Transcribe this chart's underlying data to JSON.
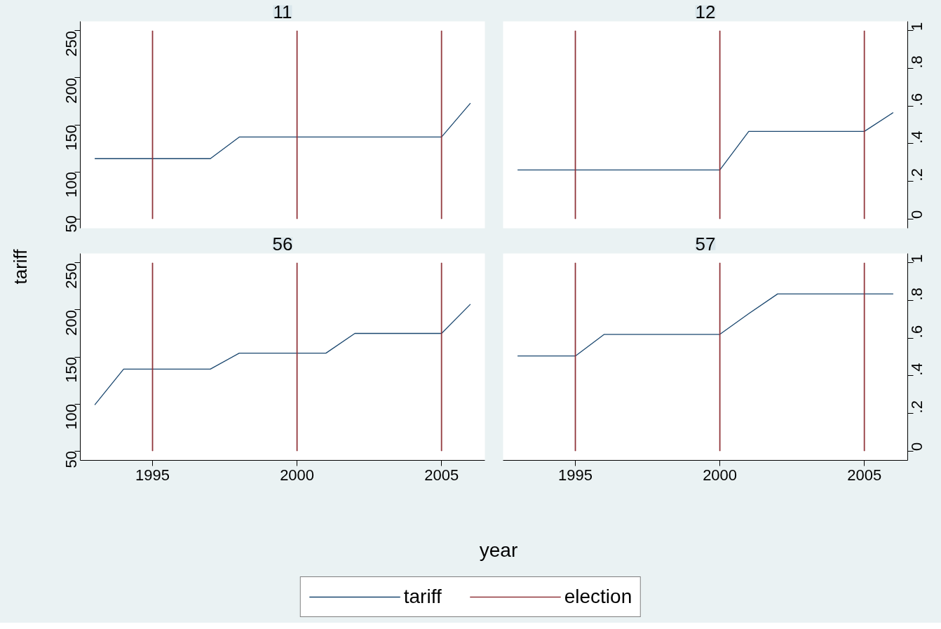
{
  "chart_data": [
    {
      "type": "line",
      "title": "11",
      "ylabel": "tariff",
      "legend": "bottom",
      "x": [
        1993,
        1994,
        1995,
        1996,
        1997,
        1998,
        1999,
        2000,
        2001,
        2002,
        2003,
        2004,
        2005,
        2006
      ],
      "xlim": [
        1992.5,
        2006.5
      ],
      "ylim": [
        40,
        260
      ],
      "yticks": [
        50,
        100,
        150,
        200,
        250
      ],
      "y2lim": [
        -0.05,
        1.05
      ],
      "tick_labels": "y",
      "series": [
        {
          "name": "tariff",
          "color": "#1a476f",
          "values": [
            114,
            114,
            114,
            114,
            114,
            137,
            137,
            137,
            137,
            137,
            137,
            137,
            137,
            173
          ]
        },
        {
          "name": "election",
          "type": "bar",
          "axis": "y2",
          "color": "#90353b",
          "x": [
            1995,
            2000,
            2005
          ],
          "values": [
            1,
            1,
            1
          ]
        }
      ]
    },
    {
      "type": "line",
      "title": "12",
      "x": [
        1993,
        1994,
        1995,
        1996,
        1997,
        1998,
        1999,
        2000,
        2001,
        2002,
        2003,
        2004,
        2005,
        2006
      ],
      "xlim": [
        1992.5,
        2006.5
      ],
      "ylim": [
        40,
        260
      ],
      "y2lim": [
        -0.05,
        1.05
      ],
      "y2ticks": [
        {
          "value": 0,
          "label": "0"
        },
        {
          "value": 0.2,
          "label": ".2"
        },
        {
          "value": 0.4,
          "label": ".4"
        },
        {
          "value": 0.6,
          "label": ".6"
        },
        {
          "value": 0.8,
          "label": ".8"
        },
        1
      ],
      "tick_labels": "y2",
      "series": [
        {
          "color": "#1a476f",
          "values": [
            102,
            102,
            102,
            102,
            102,
            102,
            102,
            102,
            143,
            143,
            143,
            143,
            143,
            163
          ]
        },
        {
          "type": "bar",
          "axis": "y2",
          "color": "#90353b",
          "x": [
            1995,
            2000,
            2005
          ],
          "values": [
            1,
            1,
            1
          ]
        }
      ]
    },
    {
      "type": "line",
      "title": "56",
      "xlabel": "year",
      "x": [
        1993,
        1994,
        1995,
        1996,
        1997,
        1998,
        1999,
        2000,
        2001,
        2002,
        2003,
        2004,
        2005,
        2006
      ],
      "xlim": [
        1992.5,
        2006.5
      ],
      "xticks": [
        1995,
        2000,
        2005
      ],
      "ylim": [
        40,
        260
      ],
      "yticks": [
        50,
        100,
        150,
        200,
        250
      ],
      "y2lim": [
        -0.05,
        1.05
      ],
      "tick_labels": "xy",
      "series": [
        {
          "color": "#1a476f",
          "values": [
            99,
            137,
            137,
            137,
            137,
            154,
            154,
            154,
            154,
            175,
            175,
            175,
            175,
            206
          ]
        },
        {
          "type": "bar",
          "axis": "y2",
          "color": "#90353b",
          "x": [
            1995,
            2000,
            2005
          ],
          "values": [
            1,
            1,
            1
          ]
        }
      ]
    },
    {
      "type": "line",
      "title": "57",
      "x": [
        1993,
        1994,
        1995,
        1996,
        1997,
        1998,
        1999,
        2000,
        2001,
        2002,
        2003,
        2004,
        2005,
        2006
      ],
      "xlim": [
        1992.5,
        2006.5
      ],
      "xticks": [
        1995,
        2000,
        2005
      ],
      "ylim": [
        40,
        260
      ],
      "y2lim": [
        -0.05,
        1.05
      ],
      "y2ticks": [
        {
          "value": 0,
          "label": "0"
        },
        {
          "value": 0.2,
          "label": ".2"
        },
        {
          "value": 0.4,
          "label": ".4"
        },
        {
          "value": 0.6,
          "label": ".6"
        },
        {
          "value": 0.8,
          "label": ".8"
        },
        1
      ],
      "tick_labels": "xy2",
      "series": [
        {
          "color": "#1a476f",
          "values": [
            151,
            151,
            151,
            174,
            174,
            174,
            174,
            174,
            196,
            217,
            217,
            217,
            217,
            217
          ]
        },
        {
          "type": "bar",
          "axis": "y2",
          "color": "#90353b",
          "x": [
            1995,
            2000,
            2005
          ],
          "values": [
            1,
            1,
            1
          ]
        }
      ]
    }
  ]
}
